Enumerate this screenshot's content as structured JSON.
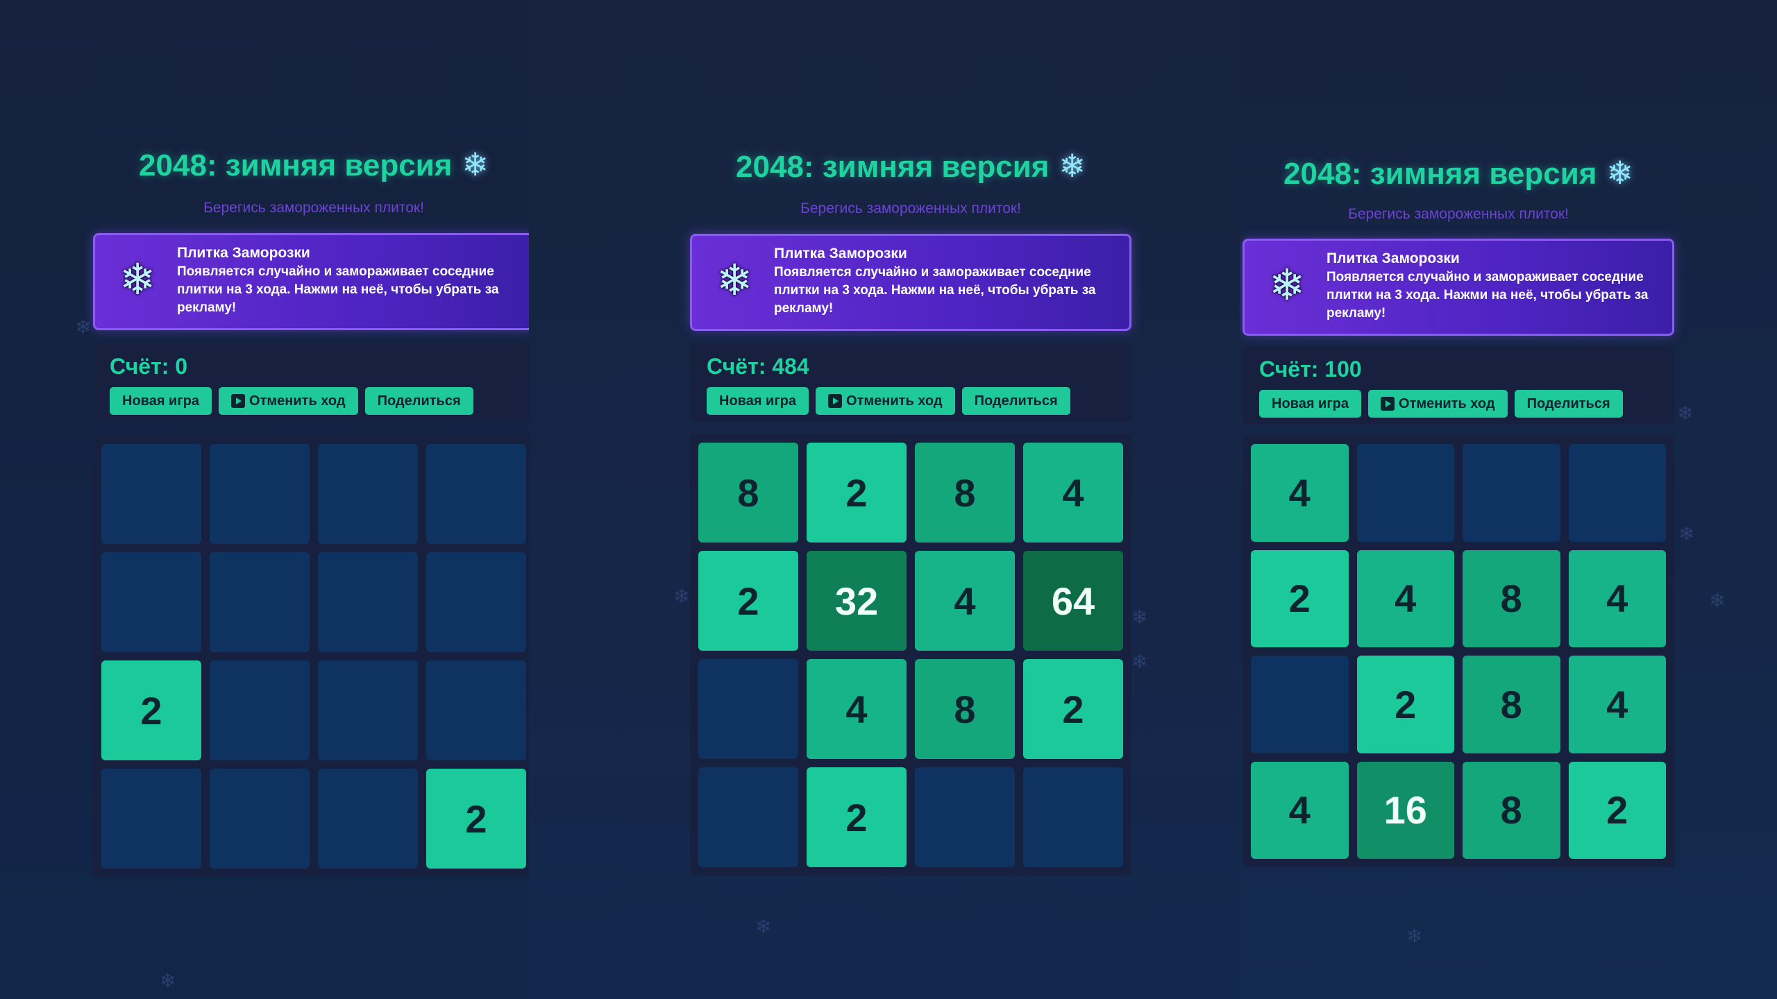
{
  "game": {
    "title": "2048: зимняя версия",
    "subtitle": "Берегись замороженных плиток!",
    "banner_title": "Плитка Заморозки",
    "banner_text": "Появляется случайно и замораживает соседние плитки на 3 хода. Нажми на неё, чтобы убрать за рекламу!",
    "buttons": {
      "new_game": "Новая игра",
      "undo": "Отменить ход",
      "share": "Поделиться"
    }
  },
  "screens": [
    {
      "score": "Счёт: 0",
      "board": [
        [
          "",
          "",
          "",
          ""
        ],
        [
          "",
          "",
          "",
          ""
        ],
        [
          "2",
          "",
          "",
          ""
        ],
        [
          "",
          "",
          "",
          "2"
        ]
      ]
    },
    {
      "score": "Счёт: 484",
      "board": [
        [
          "8",
          "2",
          "8",
          "4"
        ],
        [
          "2",
          "32",
          "4",
          "64"
        ],
        [
          "",
          "4",
          "8",
          "2"
        ],
        [
          "",
          "2",
          "",
          ""
        ]
      ]
    },
    {
      "score": "Счёт: 100",
      "board": [
        [
          "4",
          "",
          "",
          ""
        ],
        [
          "2",
          "4",
          "8",
          "4"
        ],
        [
          "",
          "2",
          "8",
          "4"
        ],
        [
          "4",
          "16",
          "8",
          "2"
        ]
      ]
    }
  ],
  "icons": {
    "snowflake": "❄"
  },
  "colors": {
    "accent": "#1fd3a0",
    "banner": "#5a28cc",
    "empty_cell": "#0f3360"
  }
}
